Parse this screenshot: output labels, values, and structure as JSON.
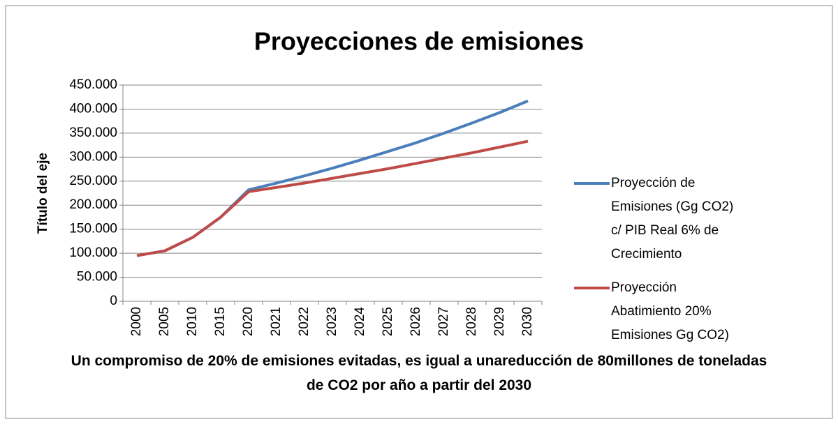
{
  "chart_data": {
    "type": "line",
    "title": "Proyecciones de emisiones",
    "x_label": "Un compromiso de 20% de emisiones evitadas, es igual a unareducción de 80millones de toneladas de CO2 por año a partir del 2030",
    "y_label": "Título del eje",
    "categories": [
      "2000",
      "2005",
      "2010",
      "2015",
      "2020",
      "2021",
      "2022",
      "2023",
      "2024",
      "2025",
      "2026",
      "2027",
      "2028",
      "2029",
      "2030"
    ],
    "series": [
      {
        "name": "Proyección de Emisiones (Gg CO2) c/ PIB Real 6% de Crecimiento",
        "color": "#4a7ebb",
        "values": [
          95000,
          105000,
          133000,
          175000,
          232000,
          246000,
          261000,
          277000,
          294000,
          312000,
          330000,
          350000,
          371000,
          393000,
          417000
        ]
      },
      {
        "name": "Proyección Abatimiento 20% Emisiones Gg CO2)",
        "color": "#be4b48",
        "values": [
          95000,
          105000,
          133000,
          175000,
          228000,
          237000,
          246000,
          256000,
          266000,
          276000,
          287000,
          298000,
          309000,
          321000,
          333000
        ]
      }
    ],
    "ylim": [
      0,
      450000
    ],
    "yticks": [
      0,
      {
        "value": 50000,
        "label": "50.000"
      },
      {
        "value": 100000,
        "label": "100.000"
      },
      {
        "value": 150000,
        "label": "150.000"
      },
      {
        "value": 200000,
        "label": "200.000"
      },
      {
        "value": 250000,
        "label": "250.000"
      },
      {
        "value": 300000,
        "label": "300.000"
      },
      {
        "value": 350000,
        "label": "350.000"
      },
      {
        "value": 400000,
        "label": "400.000"
      },
      {
        "value": 450000,
        "label": "450.000"
      }
    ],
    "grid": true,
    "legend": "right"
  }
}
